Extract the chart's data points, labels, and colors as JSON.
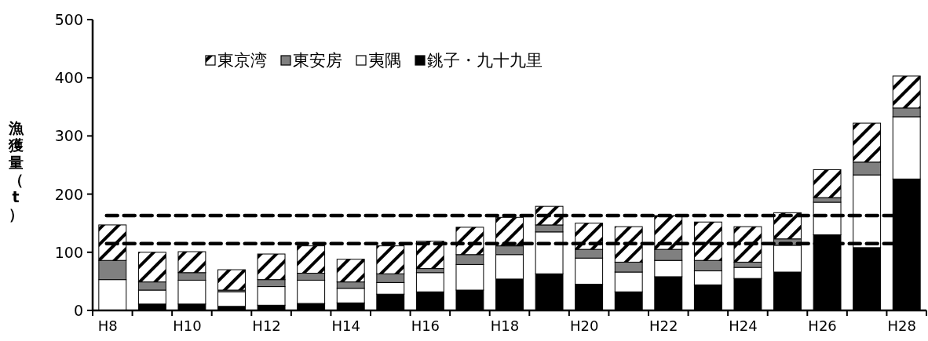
{
  "chart_data": {
    "type": "bar",
    "stacked": true,
    "ylabel": "漁獲量（t）",
    "categories": [
      "H8",
      null,
      "H10",
      null,
      "H12",
      null,
      "H14",
      null,
      "H16",
      null,
      "H18",
      null,
      "H20",
      null,
      "H22",
      null,
      "H24",
      null,
      "H26",
      null,
      "H28"
    ],
    "series": [
      {
        "name": "銚子・九十九里",
        "color": "#000000",
        "values": [
          null,
          11,
          11,
          7,
          9,
          12,
          13,
          28,
          32,
          35,
          54,
          63,
          45,
          32,
          58,
          44,
          55,
          66,
          130,
          108,
          226
        ]
      },
      {
        "name": "夷隅",
        "color": "#ffffff",
        "values": [
          53,
          24,
          41,
          25,
          32,
          40,
          25,
          20,
          33,
          44,
          42,
          72,
          45,
          34,
          28,
          24,
          19,
          46,
          56,
          125,
          107
        ]
      },
      {
        "name": "東安房",
        "color": "#808080",
        "values": [
          33,
          14,
          13,
          3,
          12,
          12,
          11,
          15,
          7,
          17,
          15,
          12,
          15,
          17,
          19,
          18,
          9,
          11,
          8,
          22,
          15
        ]
      },
      {
        "name": "東京湾",
        "color": "#000000",
        "values": [
          61,
          51,
          36,
          35,
          44,
          47,
          39,
          48,
          47,
          47,
          49,
          32,
          45,
          61,
          58,
          66,
          61,
          45,
          48,
          67,
          55
        ]
      }
    ],
    "ylim": [
      0,
      500
    ],
    "yticks": [
      0,
      100,
      200,
      300,
      400,
      500
    ],
    "grid": false,
    "legend": "top",
    "ref_lines": [
      {
        "axis": "y",
        "value": 163,
        "color": "#000000",
        "line_style": "dashed"
      },
      {
        "axis": "y",
        "value": 115,
        "color": "#000000",
        "line_style": "dashed"
      }
    ]
  }
}
